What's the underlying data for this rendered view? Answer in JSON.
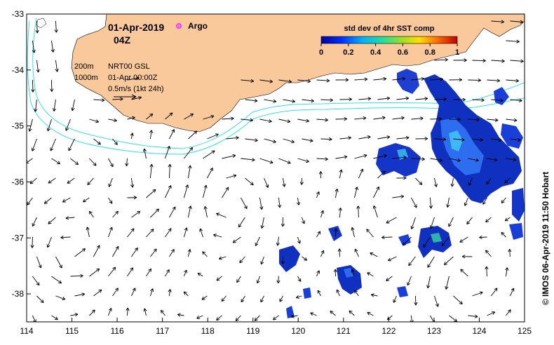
{
  "map": {
    "lon_range": [
      114,
      125
    ],
    "lat_range": [
      -38.5,
      -33
    ],
    "x_ticks": [
      "114",
      "115",
      "116",
      "117",
      "118",
      "119",
      "120",
      "121",
      "122",
      "123",
      "124",
      "125"
    ],
    "y_ticks": [
      "-33",
      "-34",
      "-35",
      "-36",
      "-37",
      "-38"
    ],
    "land_color": "#f9c89b",
    "contour_color": "#33e0e8"
  },
  "header": {
    "date": "01-Apr-2019",
    "time": "04Z",
    "argo_label": "Argo",
    "argo_color": "#ff33ff"
  },
  "legend": {
    "depth_200": "200m",
    "depth_1000": "1000m",
    "source": "NRT00 GSL",
    "source_time": "01-Apr 00:00Z",
    "scale": "0.5m/s (1kt 24h)"
  },
  "colorbar": {
    "title": "std dev of 4hr SST comp",
    "ticks": [
      "0",
      "0.2",
      "0.4",
      "0.6",
      "0.8",
      "1"
    ]
  },
  "credit": "© IMOS 06-Apr-2019 11:50 Hobart"
}
